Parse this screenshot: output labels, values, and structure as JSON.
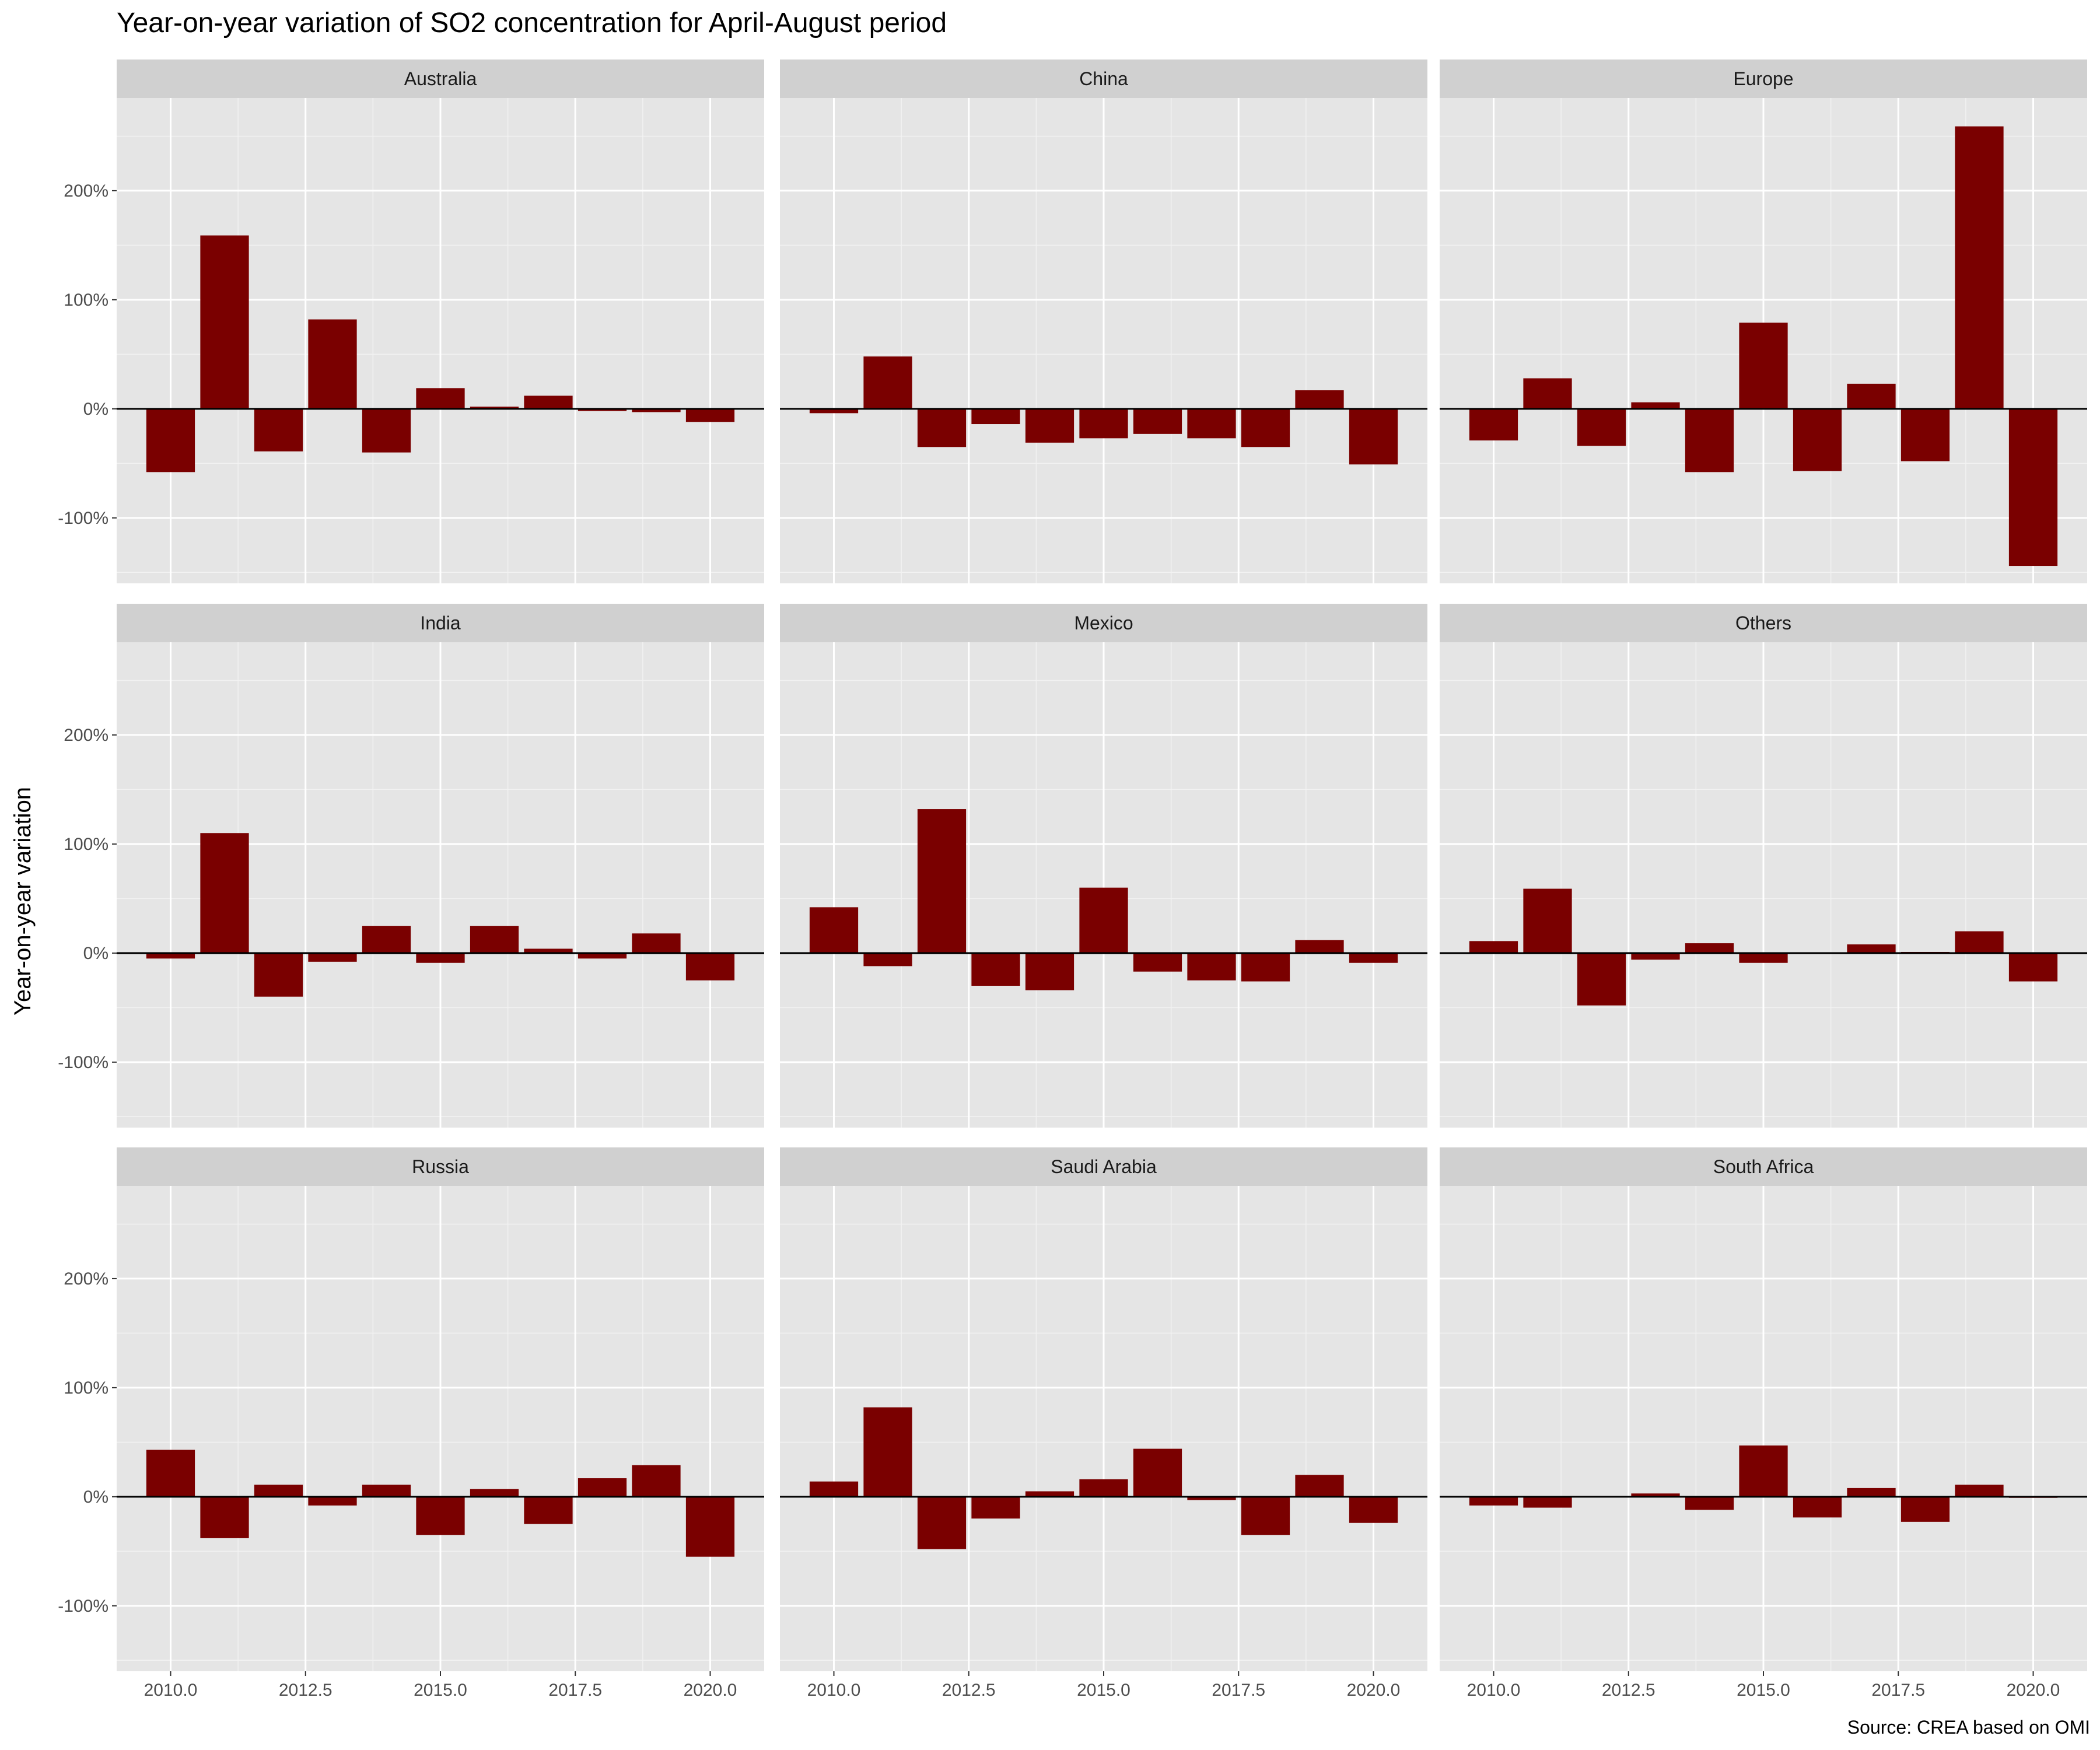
{
  "chart_data": {
    "type": "bar",
    "title": "Year-on-year variation of SO2 concentration for April-August period",
    "ylabel": "Year-on-year variation",
    "xlabel": "",
    "caption": "Source: CREA based on OMI",
    "bar_color": "#7a0000",
    "panel_background": "#e5e5e5",
    "strip_background": "#d0d0d0",
    "grid": true,
    "x": [
      2010,
      2011,
      2012,
      2013,
      2014,
      2015,
      2016,
      2017,
      2018,
      2019,
      2020
    ],
    "xlim": [
      2009.0,
      2021.0
    ],
    "x_ticks": [
      2010.0,
      2012.5,
      2015.0,
      2017.5,
      2020.0
    ],
    "x_tick_labels": [
      "2010.0",
      "2012.5",
      "2015.0",
      "2017.5",
      "2020.0"
    ],
    "ylim": [
      -160,
      285
    ],
    "y_ticks": [
      -100,
      0,
      100,
      200
    ],
    "y_tick_labels": [
      "-100%",
      "0%",
      "100%",
      "200%"
    ],
    "panels": [
      {
        "name": "Australia",
        "values": [
          -58,
          159,
          -39,
          82,
          -40,
          19,
          2,
          12,
          -2,
          -3,
          -12
        ]
      },
      {
        "name": "China",
        "values": [
          -4,
          48,
          -35,
          -14,
          -31,
          -27,
          -23,
          -27,
          -35,
          17,
          -51
        ]
      },
      {
        "name": "Europe",
        "values": [
          -29,
          28,
          -34,
          6,
          -58,
          79,
          -57,
          23,
          -48,
          259,
          -144
        ]
      },
      {
        "name": "India",
        "values": [
          -5,
          110,
          -40,
          -8,
          25,
          -9,
          25,
          4,
          -5,
          18,
          -25
        ]
      },
      {
        "name": "Mexico",
        "values": [
          42,
          -12,
          132,
          -30,
          -34,
          60,
          -17,
          -25,
          -26,
          12,
          -9
        ]
      },
      {
        "name": "Others",
        "values": [
          11,
          59,
          -48,
          -6,
          9,
          -9,
          0,
          8,
          1,
          20,
          -26
        ]
      },
      {
        "name": "Russia",
        "values": [
          43,
          -38,
          11,
          -8,
          11,
          -35,
          7,
          -25,
          17,
          29,
          -55
        ]
      },
      {
        "name": "Saudi Arabia",
        "values": [
          14,
          82,
          -48,
          -20,
          5,
          16,
          44,
          -3,
          -35,
          20,
          -24
        ]
      },
      {
        "name": "South Africa",
        "values": [
          -8,
          -10,
          0,
          3,
          -12,
          47,
          -19,
          8,
          -23,
          11,
          -1
        ]
      }
    ]
  }
}
